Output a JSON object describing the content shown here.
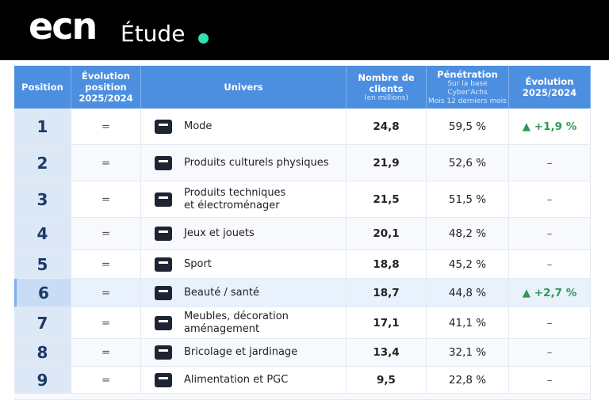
{
  "header": {
    "logo": "ecn",
    "label": "Étude"
  },
  "table": {
    "headers": [
      [
        "Position"
      ],
      [
        "Évolution",
        "position",
        "2025/2024"
      ],
      [
        "Univers"
      ],
      [
        "Nombre de",
        "clients",
        "(en millions)"
      ],
      [
        "Pénétration",
        "Sur la base Cyber'Achs",
        "Mois 12 derniers mois"
      ],
      [
        "Évolution",
        "2025/2024"
      ]
    ],
    "rows": [
      {
        "position": "1",
        "evolution_position": "=",
        "univers": [
          "Mode"
        ],
        "clients": "24,8",
        "penetration": "59,5 %",
        "evolution": "▲ +1,9 %"
      },
      {
        "position": "2",
        "evolution_position": "=",
        "univers": [
          "Produits culturels physiques"
        ],
        "clients": "21,9",
        "penetration": "52,6 %",
        "evolution": "–"
      },
      {
        "position": "3",
        "evolution_position": "=",
        "univers": [
          "Produits techniques",
          "et électroménager"
        ],
        "clients": "21,5",
        "penetration": "51,5 %",
        "evolution": "–"
      },
      {
        "position": "4",
        "evolution_position": "=",
        "univers": [
          "Jeux et jouets"
        ],
        "clients": "20,1",
        "penetration": "48,2 %",
        "evolution": "–"
      },
      {
        "position": "5",
        "evolution_position": "=",
        "univers": [
          "Sport"
        ],
        "clients": "18,8",
        "penetration": "45,2 %",
        "evolution": "–"
      },
      {
        "position": "6",
        "evolution_position": "=",
        "univers": [
          "Beauté / santé"
        ],
        "clients": "18,7",
        "penetration": "44,8 %",
        "evolution": "▲ +2,7 %"
      },
      {
        "position": "7",
        "evolution_position": "=",
        "univers": [
          "Meubles, décoration",
          "aménagement"
        ],
        "clients": "17,1",
        "penetration": "41,1 %",
        "evolution": "–"
      },
      {
        "position": "8",
        "evolution_position": "=",
        "univers": [
          "Bricolage et jardinage"
        ],
        "clients": "13,4",
        "penetration": "32,1 %",
        "evolution": "–"
      },
      {
        "position": "9",
        "evolution_position": "=",
        "univers": [
          "Alimentation et PGC"
        ],
        "clients": "9,5",
        "penetration": "22,8 %",
        "evolution": "–"
      }
    ]
  }
}
